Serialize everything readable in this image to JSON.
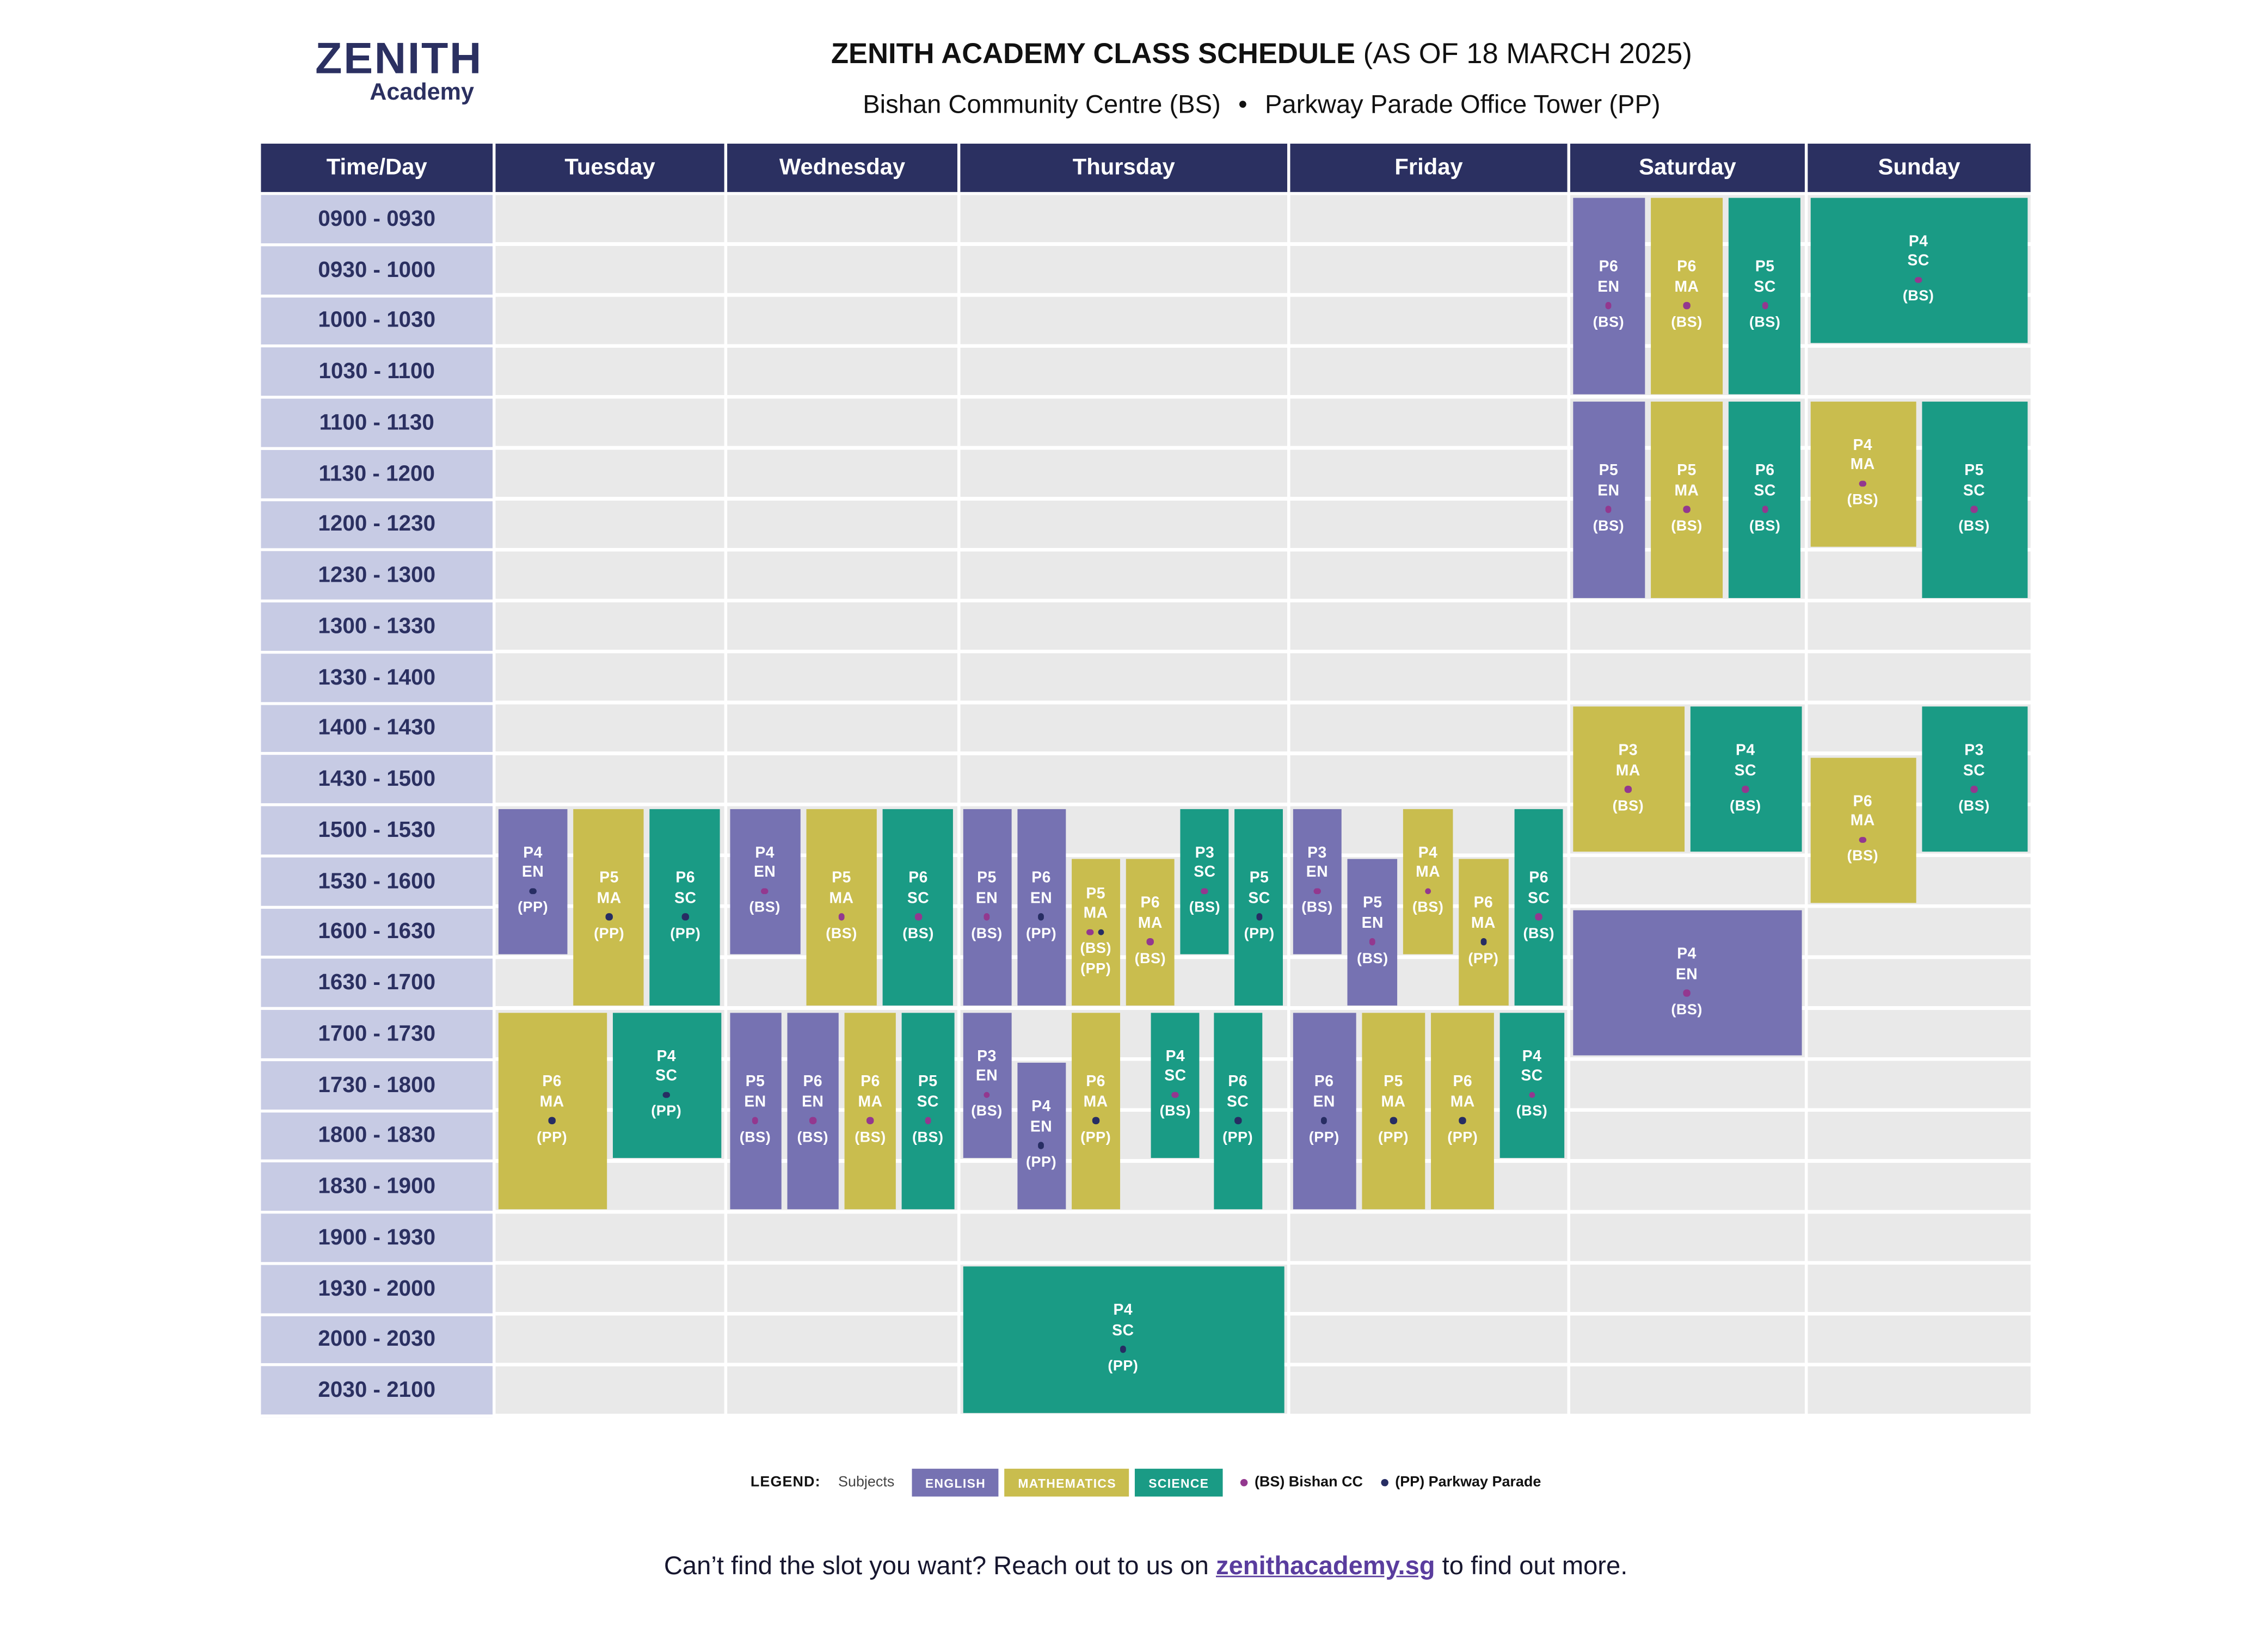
{
  "header": {
    "logo_line1": "ZENITH",
    "logo_line2": "Academy",
    "title_bold": "ZENITH ACADEMY CLASS SCHEDULE",
    "title_rest": " (AS OF 18 MARCH 2025)",
    "subtitle_left": "Bishan Community Centre (BS)",
    "subtitle_sep": "•",
    "subtitle_right": "Parkway Parade Office Tower (PP)"
  },
  "colors": {
    "navy": "#2b3061",
    "english": "#7672b2",
    "mathematics": "#c9bd4e",
    "science": "#1a9b85",
    "time_cell": "#c7cbe4",
    "empty_cell": "#e9e9e9",
    "bs_dot": "#93388f",
    "pp_dot": "#272d63"
  },
  "table": {
    "corner": "Time/Day",
    "days": [
      "Tuesday",
      "Wednesday",
      "Thursday",
      "Friday",
      "Saturday",
      "Sunday"
    ],
    "times": [
      "0900 - 0930",
      "0930 - 1000",
      "1000 - 1030",
      "1030 - 1100",
      "1100 - 1130",
      "1130 - 1200",
      "1200 - 1230",
      "1230 - 1300",
      "1300 - 1330",
      "1330 - 1400",
      "1400 - 1430",
      "1430 - 1500",
      "1500 - 1530",
      "1530 - 1600",
      "1600 - 1630",
      "1630 - 1700",
      "1700 - 1730",
      "1730 - 1800",
      "1800 - 1830",
      "1830 - 1900",
      "1900 - 1930",
      "1930 - 2000",
      "2000 - 2030",
      "2030 - 2100"
    ]
  },
  "classes": [
    {
      "d": 0,
      "lv": "P4",
      "sub": "EN",
      "loc": "(PP)",
      "lt": "pp",
      "s": 12,
      "e": 15,
      "x": 0,
      "w": 33.33
    },
    {
      "d": 0,
      "lv": "P5",
      "sub": "MA",
      "loc": "(PP)",
      "lt": "pp",
      "s": 12,
      "e": 16,
      "x": 33.33,
      "w": 33.33
    },
    {
      "d": 0,
      "lv": "P6",
      "sub": "SC",
      "loc": "(PP)",
      "lt": "pp",
      "s": 12,
      "e": 16,
      "x": 66.66,
      "w": 33.34
    },
    {
      "d": 0,
      "lv": "P6",
      "sub": "MA",
      "loc": "(PP)",
      "lt": "pp",
      "s": 16,
      "e": 20,
      "x": 0,
      "w": 50
    },
    {
      "d": 0,
      "lv": "P4",
      "sub": "SC",
      "loc": "(PP)",
      "lt": "pp",
      "s": 16,
      "e": 19,
      "x": 50,
      "w": 50
    },
    {
      "d": 1,
      "lv": "P4",
      "sub": "EN",
      "loc": "(BS)",
      "lt": "bs",
      "s": 12,
      "e": 15,
      "x": 0,
      "w": 33.33
    },
    {
      "d": 1,
      "lv": "P5",
      "sub": "MA",
      "loc": "(BS)",
      "lt": "bs",
      "s": 12,
      "e": 16,
      "x": 33.33,
      "w": 33.33
    },
    {
      "d": 1,
      "lv": "P6",
      "sub": "SC",
      "loc": "(BS)",
      "lt": "bs",
      "s": 12,
      "e": 16,
      "x": 66.66,
      "w": 33.34
    },
    {
      "d": 1,
      "lv": "P5",
      "sub": "EN",
      "loc": "(BS)",
      "lt": "bs",
      "s": 16,
      "e": 20,
      "x": 0,
      "w": 25
    },
    {
      "d": 1,
      "lv": "P6",
      "sub": "EN",
      "loc": "(BS)",
      "lt": "bs",
      "s": 16,
      "e": 20,
      "x": 25,
      "w": 25
    },
    {
      "d": 1,
      "lv": "P6",
      "sub": "MA",
      "loc": "(BS)",
      "lt": "bs",
      "s": 16,
      "e": 20,
      "x": 50,
      "w": 25
    },
    {
      "d": 1,
      "lv": "P5",
      "sub": "SC",
      "loc": "(BS)",
      "lt": "bs",
      "s": 16,
      "e": 20,
      "x": 75,
      "w": 25
    },
    {
      "d": 2,
      "lv": "P5",
      "sub": "EN",
      "loc": "(BS)",
      "lt": "bs",
      "s": 12,
      "e": 16,
      "x": 0,
      "w": 16.66
    },
    {
      "d": 2,
      "lv": "P6",
      "sub": "EN",
      "loc": "(PP)",
      "lt": "pp",
      "s": 12,
      "e": 16,
      "x": 16.66,
      "w": 16.66
    },
    {
      "d": 2,
      "lv": "P5",
      "sub": "MA",
      "loc": "(BS)",
      "lt": "bs",
      "loc2": "(PP)",
      "lt2": "pp",
      "s": 13,
      "e": 16,
      "x": 33.33,
      "w": 16.66
    },
    {
      "d": 2,
      "lv": "P6",
      "sub": "MA",
      "loc": "(BS)",
      "lt": "bs",
      "s": 13,
      "e": 16,
      "x": 50,
      "w": 16.66
    },
    {
      "d": 2,
      "lv": "P3",
      "sub": "SC",
      "loc": "(BS)",
      "lt": "bs",
      "s": 12,
      "e": 15,
      "x": 66.66,
      "w": 16.66
    },
    {
      "d": 2,
      "lv": "P5",
      "sub": "SC",
      "loc": "(PP)",
      "lt": "pp",
      "s": 12,
      "e": 16,
      "x": 83.33,
      "w": 16.67
    },
    {
      "d": 2,
      "lv": "P3",
      "sub": "EN",
      "loc": "(BS)",
      "lt": "bs",
      "s": 16,
      "e": 19,
      "x": 0,
      "w": 16.66
    },
    {
      "d": 2,
      "lv": "P4",
      "sub": "EN",
      "loc": "(PP)",
      "lt": "pp",
      "s": 17,
      "e": 20,
      "x": 16.66,
      "w": 16.66
    },
    {
      "d": 2,
      "lv": "P6",
      "sub": "MA",
      "loc": "(PP)",
      "lt": "pp",
      "s": 16,
      "e": 20,
      "x": 33.33,
      "w": 16.66
    },
    {
      "d": 2,
      "lv": "P4",
      "sub": "SC",
      "loc": "(BS)",
      "lt": "bs",
      "s": 16,
      "e": 19,
      "x": 57.8,
      "w": 16.4
    },
    {
      "d": 2,
      "lv": "P6",
      "sub": "SC",
      "loc": "(PP)",
      "lt": "pp",
      "s": 16,
      "e": 20,
      "x": 76.9,
      "w": 16.4
    },
    {
      "d": 2,
      "lv": "P4",
      "sub": "SC",
      "loc": "(PP)",
      "lt": "pp",
      "s": 21,
      "e": 24,
      "x": 0,
      "w": 100
    },
    {
      "d": 3,
      "lv": "P3",
      "sub": "EN",
      "loc": "(BS)",
      "lt": "bs",
      "s": 12,
      "e": 15,
      "x": 0,
      "w": 20
    },
    {
      "d": 3,
      "lv": "P5",
      "sub": "EN",
      "loc": "(BS)",
      "lt": "bs",
      "s": 13,
      "e": 16,
      "x": 20,
      "w": 20
    },
    {
      "d": 3,
      "lv": "P4",
      "sub": "MA",
      "loc": "(BS)",
      "lt": "bs",
      "s": 12,
      "e": 15,
      "x": 40,
      "w": 20
    },
    {
      "d": 3,
      "lv": "P6",
      "sub": "MA",
      "loc": "(PP)",
      "lt": "pp",
      "s": 13,
      "e": 16,
      "x": 60,
      "w": 20
    },
    {
      "d": 3,
      "lv": "P6",
      "sub": "SC",
      "loc": "(BS)",
      "lt": "bs",
      "s": 12,
      "e": 16,
      "x": 80,
      "w": 20
    },
    {
      "d": 3,
      "lv": "P6",
      "sub": "EN",
      "loc": "(PP)",
      "lt": "pp",
      "s": 16,
      "e": 20,
      "x": 0,
      "w": 25
    },
    {
      "d": 3,
      "lv": "P5",
      "sub": "MA",
      "loc": "(PP)",
      "lt": "pp",
      "s": 16,
      "e": 20,
      "x": 25,
      "w": 25
    },
    {
      "d": 3,
      "lv": "P6",
      "sub": "MA",
      "loc": "(PP)",
      "lt": "pp",
      "s": 16,
      "e": 20,
      "x": 50,
      "w": 25
    },
    {
      "d": 3,
      "lv": "P4",
      "sub": "SC",
      "loc": "(BS)",
      "lt": "bs",
      "s": 16,
      "e": 19,
      "x": 75,
      "w": 25
    },
    {
      "d": 4,
      "lv": "P6",
      "sub": "EN",
      "loc": "(BS)",
      "lt": "bs",
      "s": 0,
      "e": 4,
      "x": 0,
      "w": 33.33
    },
    {
      "d": 4,
      "lv": "P6",
      "sub": "MA",
      "loc": "(BS)",
      "lt": "bs",
      "s": 0,
      "e": 4,
      "x": 33.33,
      "w": 33.33
    },
    {
      "d": 4,
      "lv": "P5",
      "sub": "SC",
      "loc": "(BS)",
      "lt": "bs",
      "s": 0,
      "e": 4,
      "x": 66.66,
      "w": 33.34
    },
    {
      "d": 4,
      "lv": "P5",
      "sub": "EN",
      "loc": "(BS)",
      "lt": "bs",
      "s": 4,
      "e": 8,
      "x": 0,
      "w": 33.33
    },
    {
      "d": 4,
      "lv": "P5",
      "sub": "MA",
      "loc": "(BS)",
      "lt": "bs",
      "s": 4,
      "e": 8,
      "x": 33.33,
      "w": 33.33
    },
    {
      "d": 4,
      "lv": "P6",
      "sub": "SC",
      "loc": "(BS)",
      "lt": "bs",
      "s": 4,
      "e": 8,
      "x": 66.66,
      "w": 33.34
    },
    {
      "d": 4,
      "lv": "P3",
      "sub": "MA",
      "loc": "(BS)",
      "lt": "bs",
      "s": 10,
      "e": 13,
      "x": 0,
      "w": 50
    },
    {
      "d": 4,
      "lv": "P4",
      "sub": "SC",
      "loc": "(BS)",
      "lt": "bs",
      "s": 10,
      "e": 13,
      "x": 50,
      "w": 50
    },
    {
      "d": 4,
      "lv": "P4",
      "sub": "EN",
      "loc": "(BS)",
      "lt": "bs",
      "s": 14,
      "e": 17,
      "x": 0,
      "w": 100
    },
    {
      "d": 5,
      "lv": "P4",
      "sub": "SC",
      "loc": "(BS)",
      "lt": "bs",
      "s": 0,
      "e": 3,
      "x": 0,
      "w": 100
    },
    {
      "d": 5,
      "lv": "P4",
      "sub": "MA",
      "loc": "(BS)",
      "lt": "bs",
      "s": 4,
      "e": 7,
      "x": 0,
      "w": 50
    },
    {
      "d": 5,
      "lv": "P5",
      "sub": "SC",
      "loc": "(BS)",
      "lt": "bs",
      "s": 4,
      "e": 8,
      "x": 50,
      "w": 50
    },
    {
      "d": 5,
      "lv": "P3",
      "sub": "SC",
      "loc": "(BS)",
      "lt": "bs",
      "s": 10,
      "e": 13,
      "x": 50,
      "w": 50
    },
    {
      "d": 5,
      "lv": "P6",
      "sub": "MA",
      "loc": "(BS)",
      "lt": "bs",
      "s": 11,
      "e": 14,
      "x": 0,
      "w": 50
    }
  ],
  "legend": {
    "label": "LEGEND:",
    "subjects_label": "Subjects",
    "chips": [
      {
        "label": "ENGLISH"
      },
      {
        "label": "MATHEMATICS"
      },
      {
        "label": "SCIENCE"
      }
    ],
    "bs_label": "(BS) Bishan CC",
    "pp_label": "(PP) Parkway Parade"
  },
  "footer": {
    "pre": "Can’t find the slot you want? Reach out to us on ",
    "link": "zenithacademy.sg",
    "post": " to find out more."
  }
}
